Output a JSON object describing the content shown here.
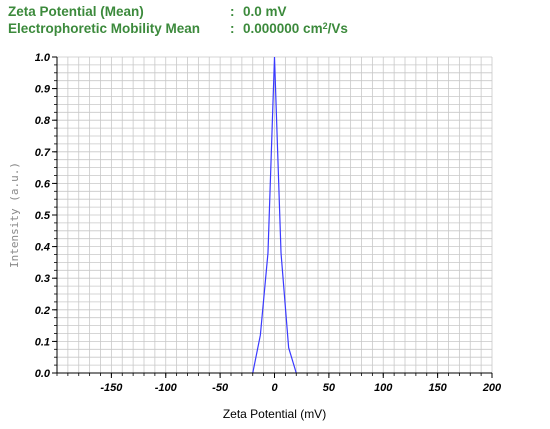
{
  "summary": {
    "zeta_label": "Zeta Potential (Mean)",
    "zeta_colon": ":",
    "zeta_value": "0.0 mV",
    "mobility_label": "Electrophoretic Mobility Mean",
    "mobility_colon": ":",
    "mobility_value": "0.000000 cm",
    "mobility_sup": "2",
    "mobility_unit": "/Vs"
  },
  "colors": {
    "summary_text": "#3c8a3c",
    "series_line": "#3a3aff",
    "grid": "#c8c8c8",
    "axis": "#000000"
  },
  "chart_data": {
    "type": "line",
    "xlabel": "Zeta Potential (mV)",
    "ylabel": "Intensity (a.u.)",
    "xlim": [
      -200,
      200
    ],
    "ylim": [
      0,
      1.0
    ],
    "x_ticks": [
      -150,
      -100,
      -50,
      0,
      50,
      100,
      150,
      200
    ],
    "x_tick_labels": [
      "-150",
      "-100",
      "-50",
      "0",
      "50",
      "100",
      "150",
      "200"
    ],
    "y_ticks": [
      0.0,
      0.1,
      0.2,
      0.3,
      0.4,
      0.5,
      0.6,
      0.7,
      0.8,
      0.9,
      1.0
    ],
    "y_tick_labels": [
      "0.0",
      "0.1",
      "0.2",
      "0.3",
      "0.4",
      "0.5",
      "0.6",
      "0.7",
      "0.8",
      "0.9",
      "1.0"
    ],
    "grid": true,
    "series": [
      {
        "x": [
          -20,
          -13,
          -6,
          0,
          6,
          13,
          20
        ],
        "y": [
          0.0,
          0.12,
          0.38,
          1.0,
          0.38,
          0.08,
          0.0
        ]
      }
    ]
  }
}
